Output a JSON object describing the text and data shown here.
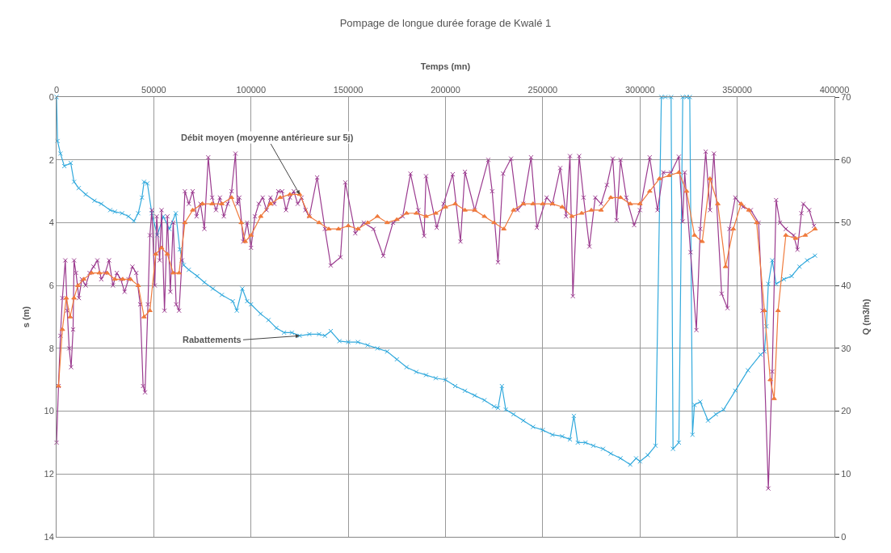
{
  "chart_data": {
    "type": "line",
    "title": "Pompage de longue durée forage de Kwalé 1",
    "xlabel": "Temps (mn)",
    "ylabel": "s (m)",
    "y2label": "Q (m3/h)",
    "xlim": [
      0,
      400000
    ],
    "xticks": [
      0,
      50000,
      100000,
      150000,
      200000,
      250000,
      300000,
      350000,
      400000
    ],
    "ylim": [
      14,
      0
    ],
    "yticks": [
      0,
      2,
      4,
      6,
      8,
      10,
      12,
      14
    ],
    "y2lim": [
      0,
      70
    ],
    "y2ticks": [
      0,
      10,
      20,
      30,
      40,
      50,
      60,
      70
    ],
    "grid": true,
    "legend": false,
    "line_style": "solid",
    "series": [
      {
        "name": "Rabattements",
        "color": "#33aadd",
        "marker": "cross",
        "x": [
          0,
          500,
          2000,
          4000,
          7300,
          9000,
          11400,
          15000,
          19500,
          23000,
          27600,
          30000,
          33700,
          37000,
          39800,
          42000,
          43900,
          45000,
          46700,
          49000,
          51800,
          54900,
          58000,
          61300,
          63400,
          65400,
          68000,
          72300,
          76000,
          80400,
          85000,
          90600,
          92700,
          95500,
          98000,
          100000,
          104900,
          109000,
          113000,
          117000,
          121000,
          125000,
          130000,
          135000,
          138000,
          141000,
          145500,
          150000,
          155000,
          160000,
          165000,
          170000,
          175000,
          180000,
          185000,
          190000,
          195000,
          200000,
          205000,
          210000,
          215000,
          220000,
          225000,
          227000,
          229000,
          231000,
          235000,
          240000,
          245000,
          250000,
          255000,
          260000,
          264000,
          266000,
          268000,
          272000,
          276000,
          281000,
          285000,
          290000,
          295000,
          298000,
          300000,
          304000,
          308000,
          311000,
          313000,
          316000,
          317000,
          320000,
          322000,
          324000,
          325600,
          327000,
          328000,
          331000,
          335000,
          339000,
          343000,
          349000,
          355500,
          362000,
          364000,
          365000,
          366000,
          368000,
          370000,
          374000,
          378000,
          382000,
          386000,
          390000
        ],
        "values": [
          0,
          1.4,
          1.8,
          2.2,
          2.1,
          2.7,
          2.9,
          3.1,
          3.3,
          3.4,
          3.6,
          3.65,
          3.7,
          3.8,
          3.95,
          3.7,
          3.2,
          2.7,
          2.75,
          3.7,
          4.4,
          3.8,
          4.2,
          3.7,
          4.85,
          5.35,
          5.5,
          5.7,
          5.9,
          6.1,
          6.3,
          6.5,
          6.8,
          6.1,
          6.5,
          6.6,
          6.9,
          7.1,
          7.35,
          7.5,
          7.5,
          7.6,
          7.55,
          7.55,
          7.6,
          7.45,
          7.77,
          7.8,
          7.8,
          7.9,
          8.0,
          8.1,
          8.35,
          8.6,
          8.75,
          8.85,
          8.95,
          9.0,
          9.2,
          9.35,
          9.5,
          9.65,
          9.85,
          9.9,
          9.2,
          9.95,
          10.1,
          10.3,
          10.5,
          10.6,
          10.75,
          10.8,
          10.9,
          10.15,
          11.0,
          11.0,
          11.1,
          11.2,
          11.35,
          11.5,
          11.7,
          11.5,
          11.6,
          11.4,
          11.1,
          0,
          0,
          0,
          11.2,
          11.0,
          0,
          0,
          0,
          10.75,
          9.8,
          9.7,
          10.3,
          10.1,
          9.95,
          9.35,
          8.7,
          8.2,
          8.1,
          7.3,
          5.95,
          5.2,
          5.95,
          5.8,
          5.7,
          5.4,
          5.2,
          5.05
        ]
      },
      {
        "color": "#9b3b8f",
        "marker": "cross",
        "axis": "y2",
        "x": [
          0,
          1000,
          2000,
          3000,
          4500,
          5500,
          6500,
          7500,
          8500,
          9000,
          10000,
          11500,
          13000,
          15000,
          17000,
          19000,
          21000,
          23000,
          25000,
          27000,
          29000,
          31000,
          33000,
          35000,
          37000,
          39000,
          41000,
          43000,
          44500,
          45500,
          47000,
          48000,
          49000,
          50500,
          51500,
          53000,
          54000,
          55500,
          57000,
          58500,
          60000,
          61500,
          63000,
          64500,
          66000,
          68000,
          70000,
          72000,
          74000,
          76000,
          78000,
          80000,
          82000,
          84000,
          86000,
          88000,
          90000,
          92000,
          93000,
          94000,
          96000,
          98000,
          100000,
          102000,
          104000,
          106000,
          108000,
          110000,
          112000,
          114000,
          116000,
          118000,
          120000,
          122000,
          124000,
          126000,
          128000,
          130000,
          134000,
          138000,
          141000,
          146000,
          148500,
          153600,
          158000,
          163000,
          168000,
          173000,
          178000,
          182000,
          186000,
          189000,
          190000,
          195500,
          199000,
          203700,
          207700,
          210000,
          215000,
          222000,
          224000,
          227000,
          229600,
          233700,
          237000,
          240000,
          244000,
          247000,
          252000,
          255000,
          259000,
          262000,
          264000,
          265500,
          268700,
          271000,
          274000,
          277000,
          280000,
          283000,
          286000,
          288000,
          290000,
          293000,
          297000,
          300000,
          305000,
          309000,
          312000,
          316000,
          320000,
          322000,
          323000,
          326000,
          329000,
          331000,
          333800,
          336000,
          338000,
          342000,
          345000,
          346000,
          349000,
          353000,
          357000,
          361000,
          363000,
          366000,
          368000,
          370000,
          372000,
          375000,
          379000,
          381000,
          383000,
          384000,
          387000,
          389500
        ],
        "values": [
          15,
          24,
          32,
          38,
          44,
          36,
          30,
          27,
          33,
          44,
          42,
          38,
          41,
          40,
          42,
          43,
          44,
          41,
          42,
          44,
          40,
          42,
          41,
          39,
          41,
          43,
          42,
          37,
          24,
          23,
          37,
          48,
          52,
          40,
          51,
          44,
          52,
          36,
          51,
          39,
          50,
          37,
          36,
          44,
          55,
          53,
          55,
          51,
          53,
          49,
          60.4,
          54,
          52,
          54,
          51,
          53,
          55,
          61,
          53,
          54,
          47,
          50,
          46,
          51,
          53,
          54,
          52,
          54,
          53,
          55,
          55,
          52,
          54,
          55,
          53,
          54,
          52,
          51,
          57.2,
          49,
          43.2,
          44.5,
          56.4,
          48.3,
          50,
          49,
          44.7,
          50,
          51,
          57.8,
          52,
          47.9,
          57.4,
          49.2,
          53,
          57.7,
          47,
          58.1,
          52,
          60,
          55,
          43.7,
          57.8,
          60.2,
          52,
          53,
          60.4,
          49.2,
          54,
          53,
          58.7,
          51,
          60.6,
          38.3,
          60.6,
          54,
          46.2,
          54,
          53,
          56,
          60.2,
          50.4,
          60,
          54,
          49.6,
          52,
          60.4,
          52,
          58,
          58,
          60.5,
          50.2,
          58,
          45.3,
          32.9,
          49,
          61.3,
          52,
          61,
          38.7,
          36.4,
          49,
          54,
          52.5,
          52,
          50,
          36,
          7.7,
          26.3,
          53.6,
          50,
          49,
          48,
          45.7,
          51.5,
          53,
          52,
          49.5
        ]
      },
      {
        "name": "Débit moyen (moyenne antérieure sur 5j)",
        "color": "#f07a3c",
        "marker": "triangle",
        "axis": "y2",
        "x": [
          1000,
          3000,
          5000,
          7000,
          9000,
          11000,
          14000,
          18000,
          22000,
          26000,
          30000,
          34000,
          38000,
          42000,
          45000,
          48000,
          51000,
          54000,
          57000,
          60000,
          63000,
          66000,
          70000,
          75000,
          80000,
          85000,
          90000,
          95000,
          97000,
          100000,
          105000,
          110000,
          115000,
          120000,
          125000,
          130000,
          135000,
          140000,
          145000,
          150000,
          155000,
          160000,
          165000,
          170000,
          175000,
          180000,
          185000,
          190000,
          195000,
          200000,
          205000,
          210000,
          215000,
          220000,
          225000,
          230000,
          235000,
          240000,
          245000,
          250000,
          255000,
          260000,
          265000,
          270000,
          275000,
          280000,
          285000,
          290000,
          295000,
          300000,
          305000,
          310000,
          315000,
          320000,
          324000,
          328000,
          332000,
          336000,
          340000,
          344000,
          348000,
          352000,
          356000,
          360000,
          364000,
          367000,
          369000,
          371000,
          375000,
          380000,
          385000,
          390000
        ],
        "values": [
          24,
          33,
          38,
          35,
          38,
          40,
          41,
          42,
          42,
          42,
          41,
          41,
          41,
          40,
          35,
          36,
          45,
          46,
          45,
          42,
          42,
          50,
          52,
          53,
          53,
          53,
          54,
          50,
          47,
          48,
          51,
          53,
          54,
          54.5,
          54.5,
          51,
          50,
          49,
          49,
          49.5,
          49,
          50,
          51,
          50,
          50.5,
          51.5,
          51.5,
          51,
          51.5,
          52.5,
          53,
          52,
          52,
          51,
          50,
          49,
          52,
          53,
          53,
          53,
          53,
          52.5,
          51,
          51.5,
          52,
          52,
          54,
          54,
          53,
          53,
          55,
          57,
          57.5,
          58,
          55,
          48,
          47,
          57,
          53,
          43,
          49,
          53,
          52,
          50,
          36,
          25,
          22,
          36,
          48,
          47.5,
          48,
          49
        ]
      }
    ]
  }
}
